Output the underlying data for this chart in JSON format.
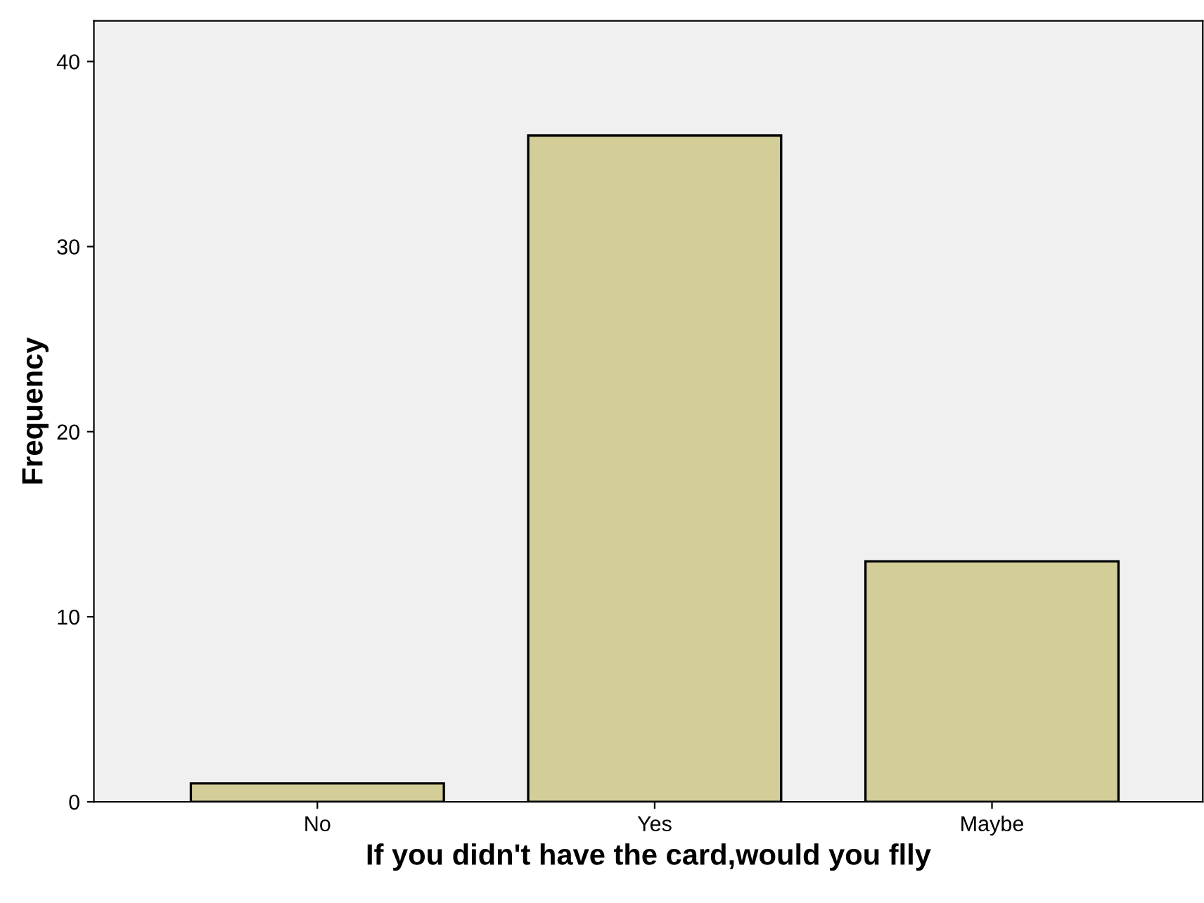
{
  "chart_data": {
    "type": "bar",
    "xlabel": "If you didn't have the card,would you flly",
    "ylabel": "Frequency",
    "categories": [
      "No",
      "Yes",
      "Maybe"
    ],
    "values": [
      1,
      36,
      13
    ],
    "color": "#d3ce97",
    "ylim": [
      0,
      42.2
    ],
    "yticks": [
      0,
      10,
      20,
      30,
      40
    ],
    "grid": false,
    "legend": false
  }
}
